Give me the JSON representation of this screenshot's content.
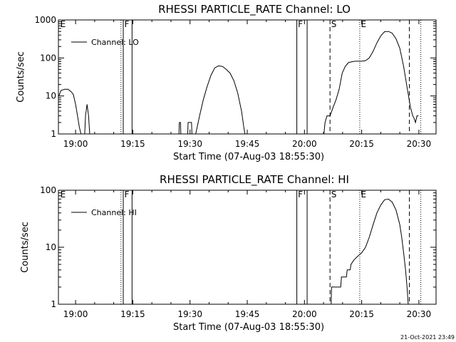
{
  "footer": {
    "timestamp": "21-Oct-2021 23:49"
  },
  "chart_data": [
    {
      "type": "line",
      "title": "RHESSI PARTICLE_RATE Channel: LO",
      "xlabel": "Start Time (07-Aug-03 18:55:30)",
      "ylabel": "Counts/sec",
      "x_unit": "minutes since 18:55:30",
      "xlim": [
        0,
        99
      ],
      "ylim": [
        1,
        1000
      ],
      "yscale": "log",
      "x_ticks": [
        {
          "label": "19:00",
          "x": 4.5
        },
        {
          "label": "19:15",
          "x": 19.5
        },
        {
          "label": "19:30",
          "x": 34.5
        },
        {
          "label": "19:45",
          "x": 49.5
        },
        {
          "label": "20:00",
          "x": 64.5
        },
        {
          "label": "20:15",
          "x": 79.5
        },
        {
          "label": "20:30",
          "x": 94.5
        }
      ],
      "y_ticks": [
        {
          "label": "1",
          "value": 1
        },
        {
          "label": "10",
          "value": 10
        },
        {
          "label": "100",
          "value": 100
        },
        {
          "label": "1000",
          "value": 1000
        }
      ],
      "legend": {
        "label": "Channel: LO",
        "position": "top-left"
      },
      "series": [
        {
          "name": "Channel: LO",
          "segments": [
            [
              [
                0.1,
                10
              ],
              [
                0.7,
                14
              ],
              [
                1.6,
                15
              ],
              [
                2.5,
                15
              ],
              [
                3.3,
                13
              ],
              [
                3.9,
                11
              ],
              [
                4.5,
                6
              ],
              [
                5.0,
                3
              ],
              [
                5.5,
                1.5
              ],
              [
                5.9,
                1
              ]
            ],
            [
              [
                6.9,
                1
              ],
              [
                7.1,
                3
              ],
              [
                7.5,
                6
              ],
              [
                7.9,
                3
              ],
              [
                8.2,
                1
              ]
            ],
            [
              [
                31.6,
                1
              ],
              [
                31.7,
                2
              ],
              [
                32.0,
                2
              ],
              [
                32.1,
                1
              ]
            ],
            [
              [
                33.9,
                1
              ],
              [
                34.0,
                2
              ],
              [
                34.9,
                2
              ],
              [
                35.0,
                1
              ]
            ],
            [
              [
                36.0,
                1
              ],
              [
                37.0,
                3
              ],
              [
                38.0,
                8
              ],
              [
                39.0,
                18
              ],
              [
                40.0,
                35
              ],
              [
                41.0,
                55
              ],
              [
                42.0,
                62
              ],
              [
                43.0,
                60
              ],
              [
                44.0,
                50
              ],
              [
                45.0,
                40
              ],
              [
                46.0,
                25
              ],
              [
                47.0,
                12
              ],
              [
                48.0,
                4
              ],
              [
                48.6,
                1.5
              ],
              [
                48.9,
                1
              ]
            ],
            [
              [
                69.6,
                1
              ],
              [
                69.9,
                2
              ],
              [
                70.4,
                3
              ],
              [
                71.2,
                3
              ],
              [
                72.0,
                5
              ],
              [
                72.8,
                8
              ],
              [
                73.6,
                15
              ],
              [
                74.4,
                40
              ],
              [
                75.2,
                60
              ],
              [
                76.0,
                75
              ],
              [
                77.0,
                80
              ],
              [
                78.0,
                82
              ],
              [
                79.5,
                82
              ],
              [
                80.5,
                85
              ],
              [
                81.5,
                100
              ],
              [
                82.5,
                150
              ],
              [
                83.5,
                250
              ],
              [
                84.5,
                380
              ],
              [
                85.5,
                490
              ],
              [
                86.5,
                500
              ],
              [
                87.5,
                450
              ],
              [
                88.5,
                320
              ],
              [
                89.5,
                180
              ],
              [
                90.5,
                60
              ],
              [
                91.5,
                15
              ],
              [
                92.3,
                5
              ],
              [
                92.9,
                3
              ],
              [
                93.3,
                2.5
              ],
              [
                93.6,
                2
              ],
              [
                94.0,
                3
              ],
              [
                94.4,
                3
              ]
            ]
          ]
        }
      ],
      "markers": [
        {
          "type": "solid",
          "x": 17.0
        },
        {
          "type": "solid",
          "x": 19.3
        },
        {
          "type": "dotted",
          "x": 16.4
        },
        {
          "type": "solid",
          "x": 62.5
        },
        {
          "type": "solid",
          "x": 65.2
        },
        {
          "type": "dashed",
          "x": 71.2
        },
        {
          "type": "dotted",
          "x": 79.0
        },
        {
          "type": "dashed",
          "x": 92.0
        },
        {
          "type": "dotted",
          "x": 95.0
        }
      ],
      "annotations": [
        {
          "text": "E",
          "x": 0.3
        },
        {
          "text": "F",
          "x": 17.1
        },
        {
          "text": "F",
          "x": 62.6
        },
        {
          "text": "S",
          "x": 71.3
        },
        {
          "text": "E",
          "x": 79.1
        }
      ]
    },
    {
      "type": "line",
      "title": "RHESSI PARTICLE_RATE Channel: HI",
      "xlabel": "Start Time (07-Aug-03 18:55:30)",
      "ylabel": "Counts/sec",
      "x_unit": "minutes since 18:55:30",
      "xlim": [
        0,
        99
      ],
      "ylim": [
        1,
        100
      ],
      "yscale": "log",
      "x_ticks": [
        {
          "label": "19:00",
          "x": 4.5
        },
        {
          "label": "19:15",
          "x": 19.5
        },
        {
          "label": "19:30",
          "x": 34.5
        },
        {
          "label": "19:45",
          "x": 49.5
        },
        {
          "label": "20:00",
          "x": 64.5
        },
        {
          "label": "20:15",
          "x": 79.5
        },
        {
          "label": "20:30",
          "x": 94.5
        }
      ],
      "y_ticks": [
        {
          "label": "1",
          "value": 1
        },
        {
          "label": "10",
          "value": 10
        },
        {
          "label": "100",
          "value": 100
        }
      ],
      "legend": {
        "label": "Channel: HI",
        "position": "top-left"
      },
      "series": [
        {
          "name": "Channel: HI",
          "segments": [
            [
              [
                71.5,
                1
              ],
              [
                71.6,
                2
              ],
              [
                74.0,
                2
              ],
              [
                74.2,
                3
              ],
              [
                75.5,
                3
              ],
              [
                75.7,
                4
              ],
              [
                76.5,
                4
              ],
              [
                76.7,
                5
              ],
              [
                77.5,
                6
              ],
              [
                78.5,
                7
              ],
              [
                79.5,
                8
              ],
              [
                80.5,
                10
              ],
              [
                81.5,
                15
              ],
              [
                82.5,
                25
              ],
              [
                83.5,
                40
              ],
              [
                84.5,
                55
              ],
              [
                85.5,
                68
              ],
              [
                86.5,
                70
              ],
              [
                87.5,
                62
              ],
              [
                88.5,
                45
              ],
              [
                89.5,
                25
              ],
              [
                90.0,
                15
              ],
              [
                90.5,
                8
              ],
              [
                91.0,
                4
              ],
              [
                91.4,
                2
              ],
              [
                91.7,
                1
              ]
            ]
          ]
        }
      ],
      "markers": [
        {
          "type": "solid",
          "x": 17.0
        },
        {
          "type": "solid",
          "x": 19.3
        },
        {
          "type": "dotted",
          "x": 16.4
        },
        {
          "type": "solid",
          "x": 62.5
        },
        {
          "type": "solid",
          "x": 65.2
        },
        {
          "type": "dashed",
          "x": 71.2
        },
        {
          "type": "dotted",
          "x": 79.0
        },
        {
          "type": "dashed",
          "x": 92.0
        },
        {
          "type": "dotted",
          "x": 95.0
        }
      ],
      "annotations": [
        {
          "text": "E",
          "x": 0.3
        },
        {
          "text": "F",
          "x": 17.1
        },
        {
          "text": "F",
          "x": 62.6
        },
        {
          "text": "S",
          "x": 71.3
        },
        {
          "text": "E",
          "x": 79.1
        }
      ]
    }
  ]
}
